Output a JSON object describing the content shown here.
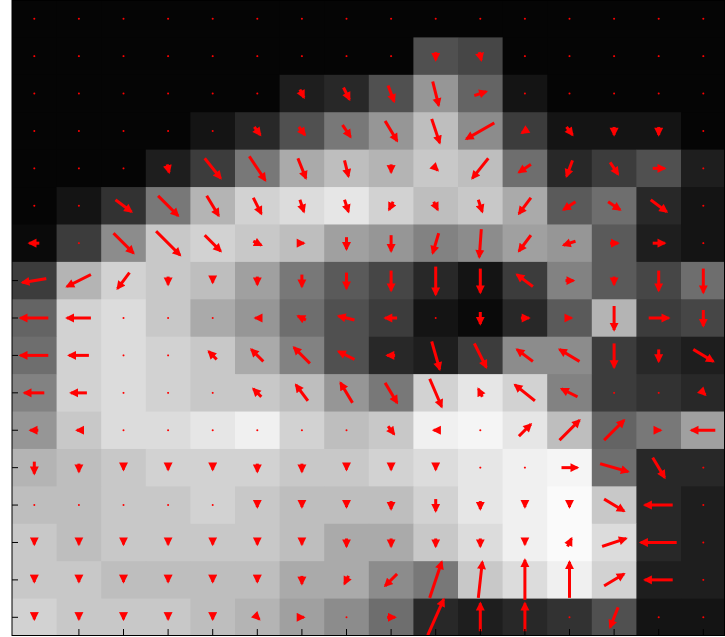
{
  "chart_data": {
    "type": "quiver",
    "color": "#ff0000",
    "image": [
      [
        5,
        5,
        5,
        5,
        5,
        5,
        5,
        5,
        5,
        5,
        5,
        5,
        5,
        5,
        5,
        5
      ],
      [
        5,
        5,
        5,
        5,
        5,
        5,
        5,
        5,
        5,
        80,
        70,
        5,
        5,
        5,
        5,
        5
      ],
      [
        5,
        5,
        5,
        5,
        5,
        5,
        30,
        40,
        80,
        150,
        100,
        20,
        5,
        5,
        5,
        5
      ],
      [
        5,
        5,
        5,
        5,
        20,
        40,
        80,
        120,
        150,
        190,
        140,
        60,
        20,
        20,
        20,
        5
      ],
      [
        5,
        5,
        5,
        30,
        60,
        120,
        170,
        190,
        180,
        200,
        190,
        110,
        40,
        60,
        80,
        30
      ],
      [
        5,
        20,
        50,
        120,
        180,
        210,
        220,
        230,
        210,
        190,
        200,
        170,
        90,
        110,
        40,
        20
      ],
      [
        10,
        60,
        140,
        200,
        210,
        200,
        190,
        160,
        150,
        130,
        140,
        160,
        150,
        90,
        30,
        20
      ],
      [
        60,
        180,
        210,
        200,
        190,
        160,
        120,
        90,
        70,
        40,
        20,
        60,
        130,
        90,
        70,
        110
      ],
      [
        100,
        210,
        220,
        200,
        170,
        150,
        110,
        80,
        60,
        20,
        10,
        40,
        90,
        180,
        60,
        70
      ],
      [
        110,
        210,
        220,
        210,
        200,
        170,
        130,
        80,
        40,
        30,
        60,
        140,
        140,
        60,
        40,
        30
      ],
      [
        130,
        210,
        220,
        210,
        200,
        200,
        190,
        150,
        120,
        210,
        230,
        210,
        130,
        60,
        50,
        40
      ],
      [
        150,
        200,
        220,
        220,
        230,
        240,
        210,
        190,
        200,
        240,
        245,
        230,
        190,
        100,
        120,
        160
      ],
      [
        180,
        190,
        200,
        210,
        210,
        210,
        200,
        200,
        210,
        220,
        230,
        240,
        245,
        110,
        40,
        40
      ],
      [
        190,
        190,
        200,
        200,
        210,
        200,
        190,
        190,
        190,
        210,
        230,
        240,
        250,
        200,
        40,
        30
      ],
      [
        200,
        190,
        200,
        200,
        200,
        200,
        190,
        170,
        170,
        200,
        220,
        240,
        250,
        220,
        40,
        30
      ],
      [
        200,
        200,
        190,
        190,
        190,
        190,
        170,
        170,
        140,
        120,
        200,
        220,
        240,
        210,
        30,
        30
      ],
      [
        210,
        200,
        200,
        200,
        190,
        180,
        160,
        140,
        110,
        40,
        30,
        40,
        50,
        80,
        20,
        20
      ]
    ],
    "u": [
      [
        0,
        0,
        0,
        0,
        0,
        0,
        0,
        0,
        0,
        0,
        0,
        0,
        0,
        0,
        0,
        0
      ],
      [
        0,
        0,
        0,
        0,
        0,
        0,
        0,
        0,
        0,
        0,
        1,
        0,
        0,
        0,
        0,
        0
      ],
      [
        0,
        0,
        0,
        0,
        0,
        0,
        2,
        3,
        3,
        3,
        6,
        0,
        0,
        0,
        0,
        0
      ],
      [
        0,
        0,
        0,
        0,
        0,
        3,
        3,
        4,
        6,
        4,
        -14,
        -3,
        3,
        0,
        0,
        0
      ],
      [
        0,
        0,
        0,
        1,
        8,
        8,
        4,
        2,
        0,
        2,
        -8,
        -6,
        -3,
        4,
        6,
        0
      ],
      [
        0,
        0,
        8,
        10,
        6,
        4,
        2,
        2,
        -2,
        2,
        2,
        -6,
        -6,
        6,
        8,
        0
      ],
      [
        -5,
        0,
        10,
        12,
        8,
        4,
        2,
        0,
        0,
        -3,
        -1,
        -6,
        -6,
        4,
        6,
        0
      ],
      [
        -12,
        -12,
        -6,
        0,
        0,
        0,
        0,
        0,
        0,
        0,
        0,
        -8,
        4,
        0,
        0,
        0
      ],
      [
        -14,
        -12,
        0,
        0,
        0,
        -2,
        -4,
        -8,
        -6,
        0,
        0,
        4,
        2,
        0,
        10,
        0
      ],
      [
        -14,
        -10,
        0,
        0,
        -4,
        -6,
        -8,
        -8,
        -4,
        4,
        6,
        -8,
        -10,
        0,
        0,
        10
      ],
      [
        -10,
        -8,
        0,
        0,
        0,
        -4,
        -6,
        -6,
        6,
        6,
        -2,
        -10,
        -8,
        0,
        0,
        2
      ],
      [
        -4,
        -2,
        0,
        0,
        0,
        0,
        0,
        0,
        3,
        -2,
        0,
        6,
        10,
        10,
        2,
        -12
      ],
      [
        0,
        0,
        0,
        0,
        0,
        0,
        0,
        0,
        0,
        0,
        0,
        0,
        8,
        14,
        6,
        0
      ],
      [
        0,
        0,
        0,
        0,
        0,
        0,
        0,
        0,
        0,
        0,
        0,
        0,
        0,
        10,
        -14,
        0
      ],
      [
        0,
        0,
        0,
        0,
        0,
        0,
        0,
        0,
        0,
        0,
        0,
        0,
        2,
        12,
        -18,
        0
      ],
      [
        0,
        0,
        0,
        0,
        0,
        0,
        0,
        -2,
        -6,
        6,
        2,
        0,
        0,
        10,
        -14,
        0
      ],
      [
        0,
        0,
        0,
        0,
        0,
        2,
        2,
        0,
        4,
        8,
        0,
        0,
        0,
        -4,
        0,
        0
      ]
    ],
    "v": [
      [
        0,
        0,
        0,
        0,
        0,
        0,
        0,
        0,
        0,
        0,
        0,
        0,
        0,
        0,
        0,
        0
      ],
      [
        0,
        0,
        0,
        0,
        0,
        0,
        0,
        0,
        0,
        4,
        4,
        0,
        0,
        0,
        0,
        0
      ],
      [
        0,
        0,
        0,
        0,
        0,
        0,
        4,
        6,
        8,
        12,
        -2,
        0,
        0,
        0,
        0,
        0
      ],
      [
        0,
        0,
        0,
        0,
        0,
        4,
        4,
        6,
        10,
        12,
        8,
        2,
        4,
        4,
        4,
        0
      ],
      [
        0,
        0,
        0,
        4,
        10,
        12,
        10,
        8,
        4,
        2,
        10,
        4,
        8,
        6,
        0,
        0
      ],
      [
        0,
        0,
        6,
        10,
        10,
        8,
        6,
        6,
        4,
        4,
        6,
        8,
        4,
        4,
        6,
        0
      ],
      [
        0,
        0,
        10,
        12,
        8,
        2,
        0,
        6,
        8,
        10,
        14,
        8,
        2,
        0,
        0,
        0
      ],
      [
        2,
        6,
        8,
        4,
        2,
        4,
        6,
        8,
        10,
        14,
        12,
        -6,
        0,
        4,
        10,
        12
      ],
      [
        0,
        0,
        0,
        0,
        0,
        0,
        -2,
        -2,
        0,
        0,
        6,
        0,
        0,
        12,
        0,
        8
      ],
      [
        0,
        0,
        0,
        0,
        -4,
        -6,
        -8,
        -4,
        0,
        14,
        12,
        -6,
        -6,
        12,
        6,
        6
      ],
      [
        0,
        0,
        0,
        0,
        0,
        -4,
        -8,
        -10,
        10,
        14,
        -4,
        -8,
        -4,
        0,
        0,
        2
      ],
      [
        0,
        0,
        0,
        0,
        0,
        0,
        0,
        0,
        4,
        0,
        0,
        -6,
        -10,
        -10,
        0,
        0
      ],
      [
        6,
        4,
        2,
        2,
        2,
        4,
        4,
        2,
        2,
        2,
        0,
        0,
        0,
        4,
        10,
        0
      ],
      [
        0,
        0,
        0,
        0,
        0,
        2,
        2,
        2,
        4,
        6,
        4,
        2,
        2,
        6,
        0,
        0
      ],
      [
        2,
        2,
        2,
        2,
        2,
        2,
        2,
        4,
        4,
        4,
        4,
        2,
        -4,
        -4,
        0,
        0
      ],
      [
        2,
        2,
        2,
        2,
        2,
        2,
        4,
        4,
        6,
        -18,
        -18,
        -20,
        -18,
        -6,
        0,
        0
      ],
      [
        2,
        2,
        2,
        2,
        2,
        2,
        0,
        0,
        0,
        -18,
        -14,
        -14,
        0,
        10,
        0,
        0
      ]
    ]
  }
}
